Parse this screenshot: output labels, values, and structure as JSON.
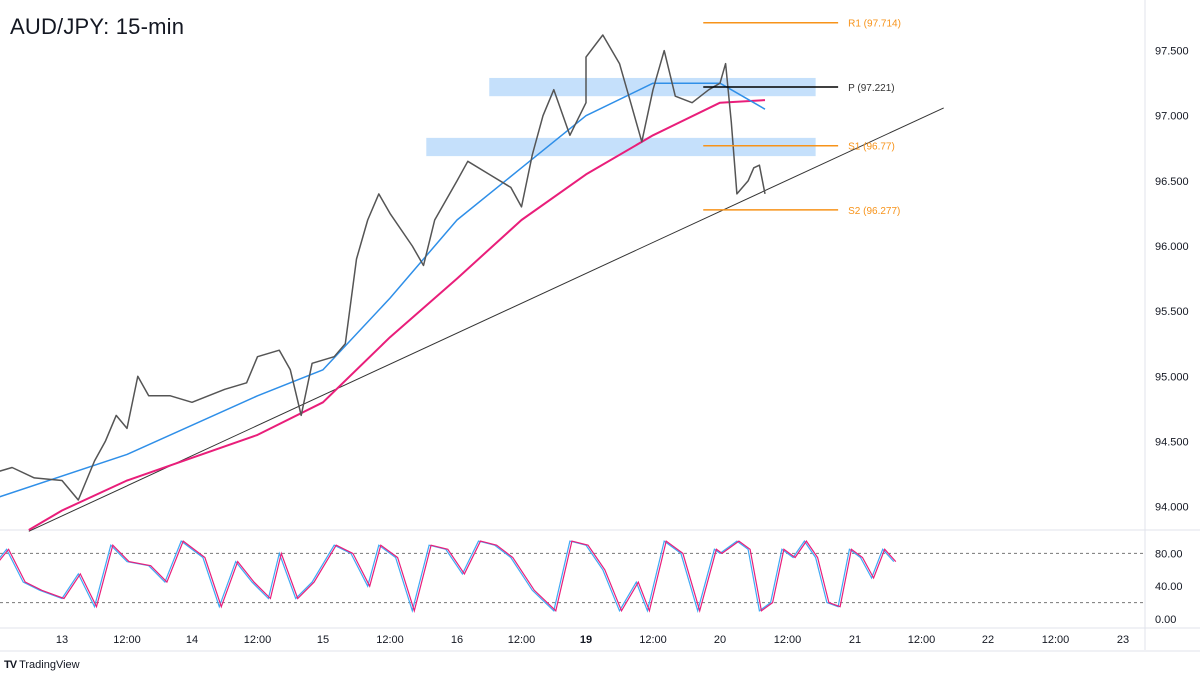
{
  "title": "AUD/JPY: 15-min",
  "brand": "TradingView",
  "colors": {
    "price": "#555555",
    "ma_fast": "#2f8fe8",
    "ma_slow": "#e91e7a",
    "pivot_orange": "#f7931a",
    "pivot_black": "#000000",
    "zone": "#bbdafa",
    "stoch_k": "#3fa9f5",
    "stoch_d": "#e91e7a"
  },
  "chart_data": {
    "type": "line",
    "title": "AUD/JPY: 15-min",
    "price_ticks": [
      "94.000",
      "94.500",
      "95.000",
      "95.500",
      "96.000",
      "96.500",
      "97.000",
      "97.500"
    ],
    "price_tick_values": [
      94.0,
      94.5,
      95.0,
      95.5,
      96.0,
      96.5,
      97.0,
      97.5
    ],
    "ylim": [
      93.82,
      97.85
    ],
    "time_ticks": [
      {
        "label": "13",
        "t": "13 00:00",
        "bold": false
      },
      {
        "label": "12:00",
        "t": "13 12:00"
      },
      {
        "label": "14",
        "t": "14 00:00"
      },
      {
        "label": "12:00",
        "t": "14 12:00"
      },
      {
        "label": "15",
        "t": "15 00:00"
      },
      {
        "label": "12:00",
        "t": "15 12:00"
      },
      {
        "label": "16",
        "t": "16 00:00"
      },
      {
        "label": "12:00",
        "t": "16 12:00"
      },
      {
        "label": "19",
        "t": "19 00:00",
        "bold": true
      },
      {
        "label": "12:00",
        "t": "19 12:00"
      },
      {
        "label": "20",
        "t": "20 00:00"
      },
      {
        "label": "12:00",
        "t": "20 12:00"
      },
      {
        "label": "21",
        "t": "21 00:00"
      },
      {
        "label": "12:00",
        "t": "21 12:00"
      },
      {
        "label": "22",
        "t": "22 00:00"
      },
      {
        "label": "12:00",
        "t": "22 12:00"
      },
      {
        "label": "23",
        "t": "23 00:00"
      }
    ],
    "price": [
      [
        "12 11:00",
        94.25
      ],
      [
        "12 15:00",
        94.3
      ],
      [
        "12 19:00",
        94.22
      ],
      [
        "13 00:00",
        94.2
      ],
      [
        "13 03:00",
        94.05
      ],
      [
        "13 06:00",
        94.35
      ],
      [
        "13 08:00",
        94.5
      ],
      [
        "13 10:00",
        94.7
      ],
      [
        "13 12:00",
        94.6
      ],
      [
        "13 14:00",
        95.0
      ],
      [
        "13 16:00",
        94.85
      ],
      [
        "13 20:00",
        94.85
      ],
      [
        "14 00:00",
        94.8
      ],
      [
        "14 06:00",
        94.9
      ],
      [
        "14 10:00",
        94.95
      ],
      [
        "14 12:00",
        95.15
      ],
      [
        "14 16:00",
        95.2
      ],
      [
        "14 18:00",
        95.05
      ],
      [
        "14 20:00",
        94.7
      ],
      [
        "14 22:00",
        95.1
      ],
      [
        "15 02:00",
        95.15
      ],
      [
        "15 04:00",
        95.25
      ],
      [
        "15 06:00",
        95.9
      ],
      [
        "15 08:00",
        96.2
      ],
      [
        "15 10:00",
        96.4
      ],
      [
        "15 12:00",
        96.25
      ],
      [
        "15 16:00",
        96.0
      ],
      [
        "15 18:00",
        95.85
      ],
      [
        "15 20:00",
        96.2
      ],
      [
        "16 00:00",
        96.5
      ],
      [
        "16 02:00",
        96.65
      ],
      [
        "16 06:00",
        96.55
      ],
      [
        "16 10:00",
        96.45
      ],
      [
        "16 12:00",
        96.3
      ],
      [
        "16 14:00",
        96.7
      ],
      [
        "16 16:00",
        97.0
      ],
      [
        "16 18:00",
        97.2
      ],
      [
        "16 21:00",
        96.85
      ],
      [
        "17 00:00",
        97.1
      ],
      [
        "19 00:00",
        97.45
      ],
      [
        "19 03:00",
        97.62
      ],
      [
        "19 06:00",
        97.4
      ],
      [
        "19 08:00",
        97.1
      ],
      [
        "19 10:00",
        96.8
      ],
      [
        "19 12:00",
        97.2
      ],
      [
        "19 14:00",
        97.5
      ],
      [
        "19 16:00",
        97.15
      ],
      [
        "19 19:00",
        97.1
      ],
      [
        "19 22:00",
        97.2
      ],
      [
        "20 00:00",
        97.25
      ],
      [
        "20 01:00",
        97.4
      ],
      [
        "20 02:00",
        96.95
      ],
      [
        "20 03:00",
        96.4
      ],
      [
        "20 04:00",
        96.45
      ],
      [
        "20 05:00",
        96.5
      ],
      [
        "20 06:00",
        96.6
      ],
      [
        "20 07:00",
        96.62
      ],
      [
        "20 08:00",
        96.4
      ]
    ],
    "ma_fast": [
      [
        "12 11:00",
        94.05
      ],
      [
        "13 12:00",
        94.4
      ],
      [
        "14 12:00",
        94.85
      ],
      [
        "15 00:00",
        95.05
      ],
      [
        "15 12:00",
        95.6
      ],
      [
        "16 00:00",
        96.2
      ],
      [
        "16 12:00",
        96.6
      ],
      [
        "19 00:00",
        97.0
      ],
      [
        "19 12:00",
        97.25
      ],
      [
        "20 00:00",
        97.25
      ],
      [
        "20 08:00",
        97.05
      ]
    ],
    "ma_slow": [
      [
        "12 18:00",
        93.82
      ],
      [
        "13 00:00",
        93.97
      ],
      [
        "13 12:00",
        94.2
      ],
      [
        "14 12:00",
        94.55
      ],
      [
        "15 00:00",
        94.8
      ],
      [
        "15 12:00",
        95.3
      ],
      [
        "16 00:00",
        95.75
      ],
      [
        "16 12:00",
        96.2
      ],
      [
        "19 00:00",
        96.55
      ],
      [
        "19 12:00",
        96.85
      ],
      [
        "20 00:00",
        97.1
      ],
      [
        "20 08:00",
        97.12
      ]
    ],
    "trendline": [
      [
        "12 18:00",
        93.81
      ],
      [
        "21 16:00",
        97.06
      ]
    ],
    "zones": [
      {
        "from": "16 06:00",
        "to": "20 17:00",
        "low": 97.15,
        "high": 97.29
      },
      {
        "from": "15 18:30",
        "to": "20 17:00",
        "low": 96.69,
        "high": 96.83
      }
    ],
    "pivots": [
      {
        "label": "R1 (97.714)",
        "value": 97.714,
        "color": "orange"
      },
      {
        "label": "P (97.221)",
        "value": 97.221,
        "color": "black"
      },
      {
        "label": "S1 (96.77)",
        "value": 96.77,
        "color": "orange"
      },
      {
        "label": "S2 (96.277)",
        "value": 96.277,
        "color": "orange"
      }
    ],
    "pivot_span": [
      "19 21:00",
      "20 21:00"
    ],
    "stoch": {
      "ticks": [
        "80.00",
        "40.00",
        "0.00"
      ],
      "tick_values": [
        80,
        40,
        0
      ],
      "levels": [
        80,
        20
      ],
      "ylim": [
        0,
        100
      ],
      "k": [
        [
          "12 11:00",
          60
        ],
        [
          "12 14:00",
          85
        ],
        [
          "12 17:00",
          45
        ],
        [
          "12 20:00",
          35
        ],
        [
          "13 00:00",
          25
        ],
        [
          "13 03:00",
          55
        ],
        [
          "13 06:00",
          15
        ],
        [
          "13 09:00",
          90
        ],
        [
          "13 12:00",
          70
        ],
        [
          "13 16:00",
          65
        ],
        [
          "13 19:00",
          45
        ],
        [
          "13 22:00",
          95
        ],
        [
          "14 02:00",
          75
        ],
        [
          "14 05:00",
          15
        ],
        [
          "14 08:00",
          70
        ],
        [
          "14 11:00",
          45
        ],
        [
          "14 14:00",
          25
        ],
        [
          "14 16:00",
          80
        ],
        [
          "14 19:00",
          25
        ],
        [
          "14 22:00",
          45
        ],
        [
          "15 02:00",
          90
        ],
        [
          "15 05:00",
          80
        ],
        [
          "15 08:00",
          40
        ],
        [
          "15 10:00",
          90
        ],
        [
          "15 13:00",
          75
        ],
        [
          "15 16:00",
          10
        ],
        [
          "15 19:00",
          90
        ],
        [
          "15 22:00",
          85
        ],
        [
          "16 01:00",
          55
        ],
        [
          "16 04:00",
          95
        ],
        [
          "16 07:00",
          90
        ],
        [
          "16 10:00",
          75
        ],
        [
          "16 14:00",
          35
        ],
        [
          "16 18:00",
          10
        ],
        [
          "16 21:00",
          95
        ],
        [
          "17 00:00",
          90
        ],
        [
          "19 00:00",
          90
        ],
        [
          "19 03:00",
          60
        ],
        [
          "19 06:00",
          10
        ],
        [
          "19 09:00",
          45
        ],
        [
          "19 11:00",
          10
        ],
        [
          "19 14:00",
          95
        ],
        [
          "19 17:00",
          80
        ],
        [
          "19 20:00",
          10
        ],
        [
          "19 23:00",
          85
        ],
        [
          "20 00:00",
          80
        ],
        [
          "20 03:00",
          95
        ],
        [
          "20 05:00",
          85
        ],
        [
          "20 07:00",
          10
        ],
        [
          "20 09:00",
          20
        ],
        [
          "20 11:00",
          85
        ],
        [
          "20 13:00",
          75
        ],
        [
          "20 15:00",
          95
        ],
        [
          "20 17:00",
          75
        ],
        [
          "20 19:00",
          20
        ],
        [
          "20 21:00",
          15
        ],
        [
          "20 23:00",
          85
        ],
        [
          "21 01:00",
          75
        ],
        [
          "21 03:00",
          50
        ],
        [
          "21 05:00",
          85
        ],
        [
          "21 07:00",
          70
        ]
      ]
    }
  }
}
